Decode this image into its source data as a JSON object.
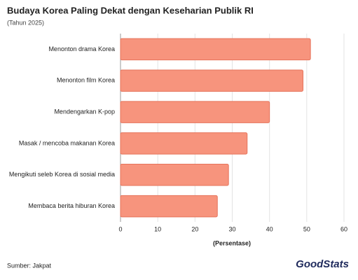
{
  "chart_data": {
    "type": "barh",
    "title": "Budaya Korea Paling Dekat dengan Keseharian Publik RI",
    "subtitle": "(Tahun 2025)",
    "categories": [
      "Menonton drama Korea",
      "Menonton film Korea",
      "Mendengarkan K-pop",
      "Masak / mencoba makanan Korea",
      "Mengikuti seleb Korea di sosial media",
      "Membaca berita hiburan Korea"
    ],
    "values": [
      51,
      49,
      40,
      34,
      29,
      26
    ],
    "color": "#f7947d",
    "edge_color": "#e6735b",
    "xlim": [
      0,
      60
    ],
    "xticks": [
      0,
      10,
      20,
      30,
      40,
      50,
      60
    ],
    "grid": true,
    "xlabel": "(Persentase)",
    "source": "Sumber: Jakpat",
    "brand": "GoodStats"
  }
}
